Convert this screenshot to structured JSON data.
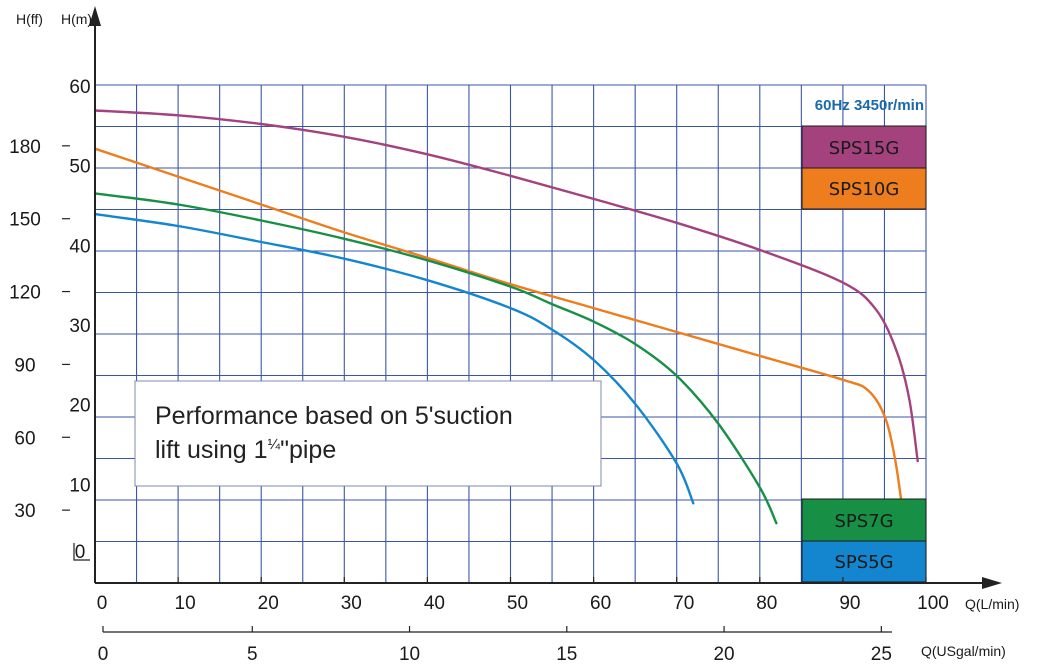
{
  "colors": {
    "grid": "#3a56a8",
    "axis": "#222222",
    "sps15g": "#a4427e",
    "sps10g": "#ee7d1e",
    "sps7g": "#179045",
    "sps5g": "#1386cf",
    "speed_text": "#1a6aab"
  },
  "chart_data": {
    "type": "line",
    "title": "",
    "speed_label": "60Hz 3450r/min",
    "note_line1": "Performance based on 5'suction",
    "note_line2_prefix": "lift using 1",
    "note_line2_fraction": "¼",
    "note_line2_suffix": "\"pipe",
    "x_axis": {
      "label": "Q(L/min)",
      "range": [
        0,
        100
      ],
      "ticks": [
        "0",
        "10",
        "20",
        "30",
        "40",
        "50",
        "60",
        "70",
        "80",
        "90",
        "100"
      ]
    },
    "x2_axis": {
      "label": "Q(USgal/min)",
      "ticks": [
        "0",
        "5",
        "10",
        "15",
        "20",
        "25"
      ]
    },
    "y_axis": {
      "label": "H(m)",
      "range": [
        0,
        62.5
      ],
      "ticks": [
        "0",
        "10",
        "20",
        "30",
        "40",
        "50",
        "60"
      ]
    },
    "y2_axis": {
      "label": "H(ff)",
      "ticks": [
        "30",
        "60",
        "90",
        "120",
        "150",
        "180"
      ]
    },
    "grid": true,
    "series": [
      {
        "name": "SPS15G",
        "color_key": "sps15g",
        "points": [
          [
            0,
            59.3
          ],
          [
            10,
            58.7
          ],
          [
            20,
            57.6
          ],
          [
            30,
            56.0
          ],
          [
            40,
            53.8
          ],
          [
            50,
            51.1
          ],
          [
            60,
            48.2
          ],
          [
            70,
            45.2
          ],
          [
            80,
            41.8
          ],
          [
            90,
            37.7
          ],
          [
            94,
            34.3
          ],
          [
            96.5,
            29.0
          ],
          [
            98,
            23.0
          ],
          [
            99,
            15.3
          ]
        ]
      },
      {
        "name": "SPS10G",
        "color_key": "sps10g",
        "points": [
          [
            0,
            54.5
          ],
          [
            10,
            51.0
          ],
          [
            20,
            47.5
          ],
          [
            30,
            44.0
          ],
          [
            40,
            40.8
          ],
          [
            50,
            37.5
          ],
          [
            60,
            34.5
          ],
          [
            70,
            31.5
          ],
          [
            80,
            28.5
          ],
          [
            90,
            25.5
          ],
          [
            93,
            24.2
          ],
          [
            95,
            21.0
          ],
          [
            96.2,
            16.0
          ],
          [
            97,
            10.5
          ]
        ]
      },
      {
        "name": "SPS7G",
        "color_key": "sps7g",
        "points": [
          [
            0,
            48.9
          ],
          [
            10,
            47.5
          ],
          [
            20,
            45.5
          ],
          [
            30,
            43.2
          ],
          [
            40,
            40.5
          ],
          [
            50,
            37.2
          ],
          [
            55,
            35.0
          ],
          [
            60,
            32.8
          ],
          [
            65,
            30.0
          ],
          [
            70,
            26.0
          ],
          [
            75,
            20.0
          ],
          [
            80,
            12.0
          ],
          [
            82,
            7.5
          ]
        ]
      },
      {
        "name": "SPS5G",
        "color_key": "sps5g",
        "points": [
          [
            0,
            46.3
          ],
          [
            10,
            44.8
          ],
          [
            20,
            42.8
          ],
          [
            30,
            40.7
          ],
          [
            40,
            38.0
          ],
          [
            50,
            34.5
          ],
          [
            55,
            31.8
          ],
          [
            60,
            28.0
          ],
          [
            65,
            22.5
          ],
          [
            70,
            15.0
          ],
          [
            72,
            10.0
          ]
        ]
      }
    ]
  }
}
